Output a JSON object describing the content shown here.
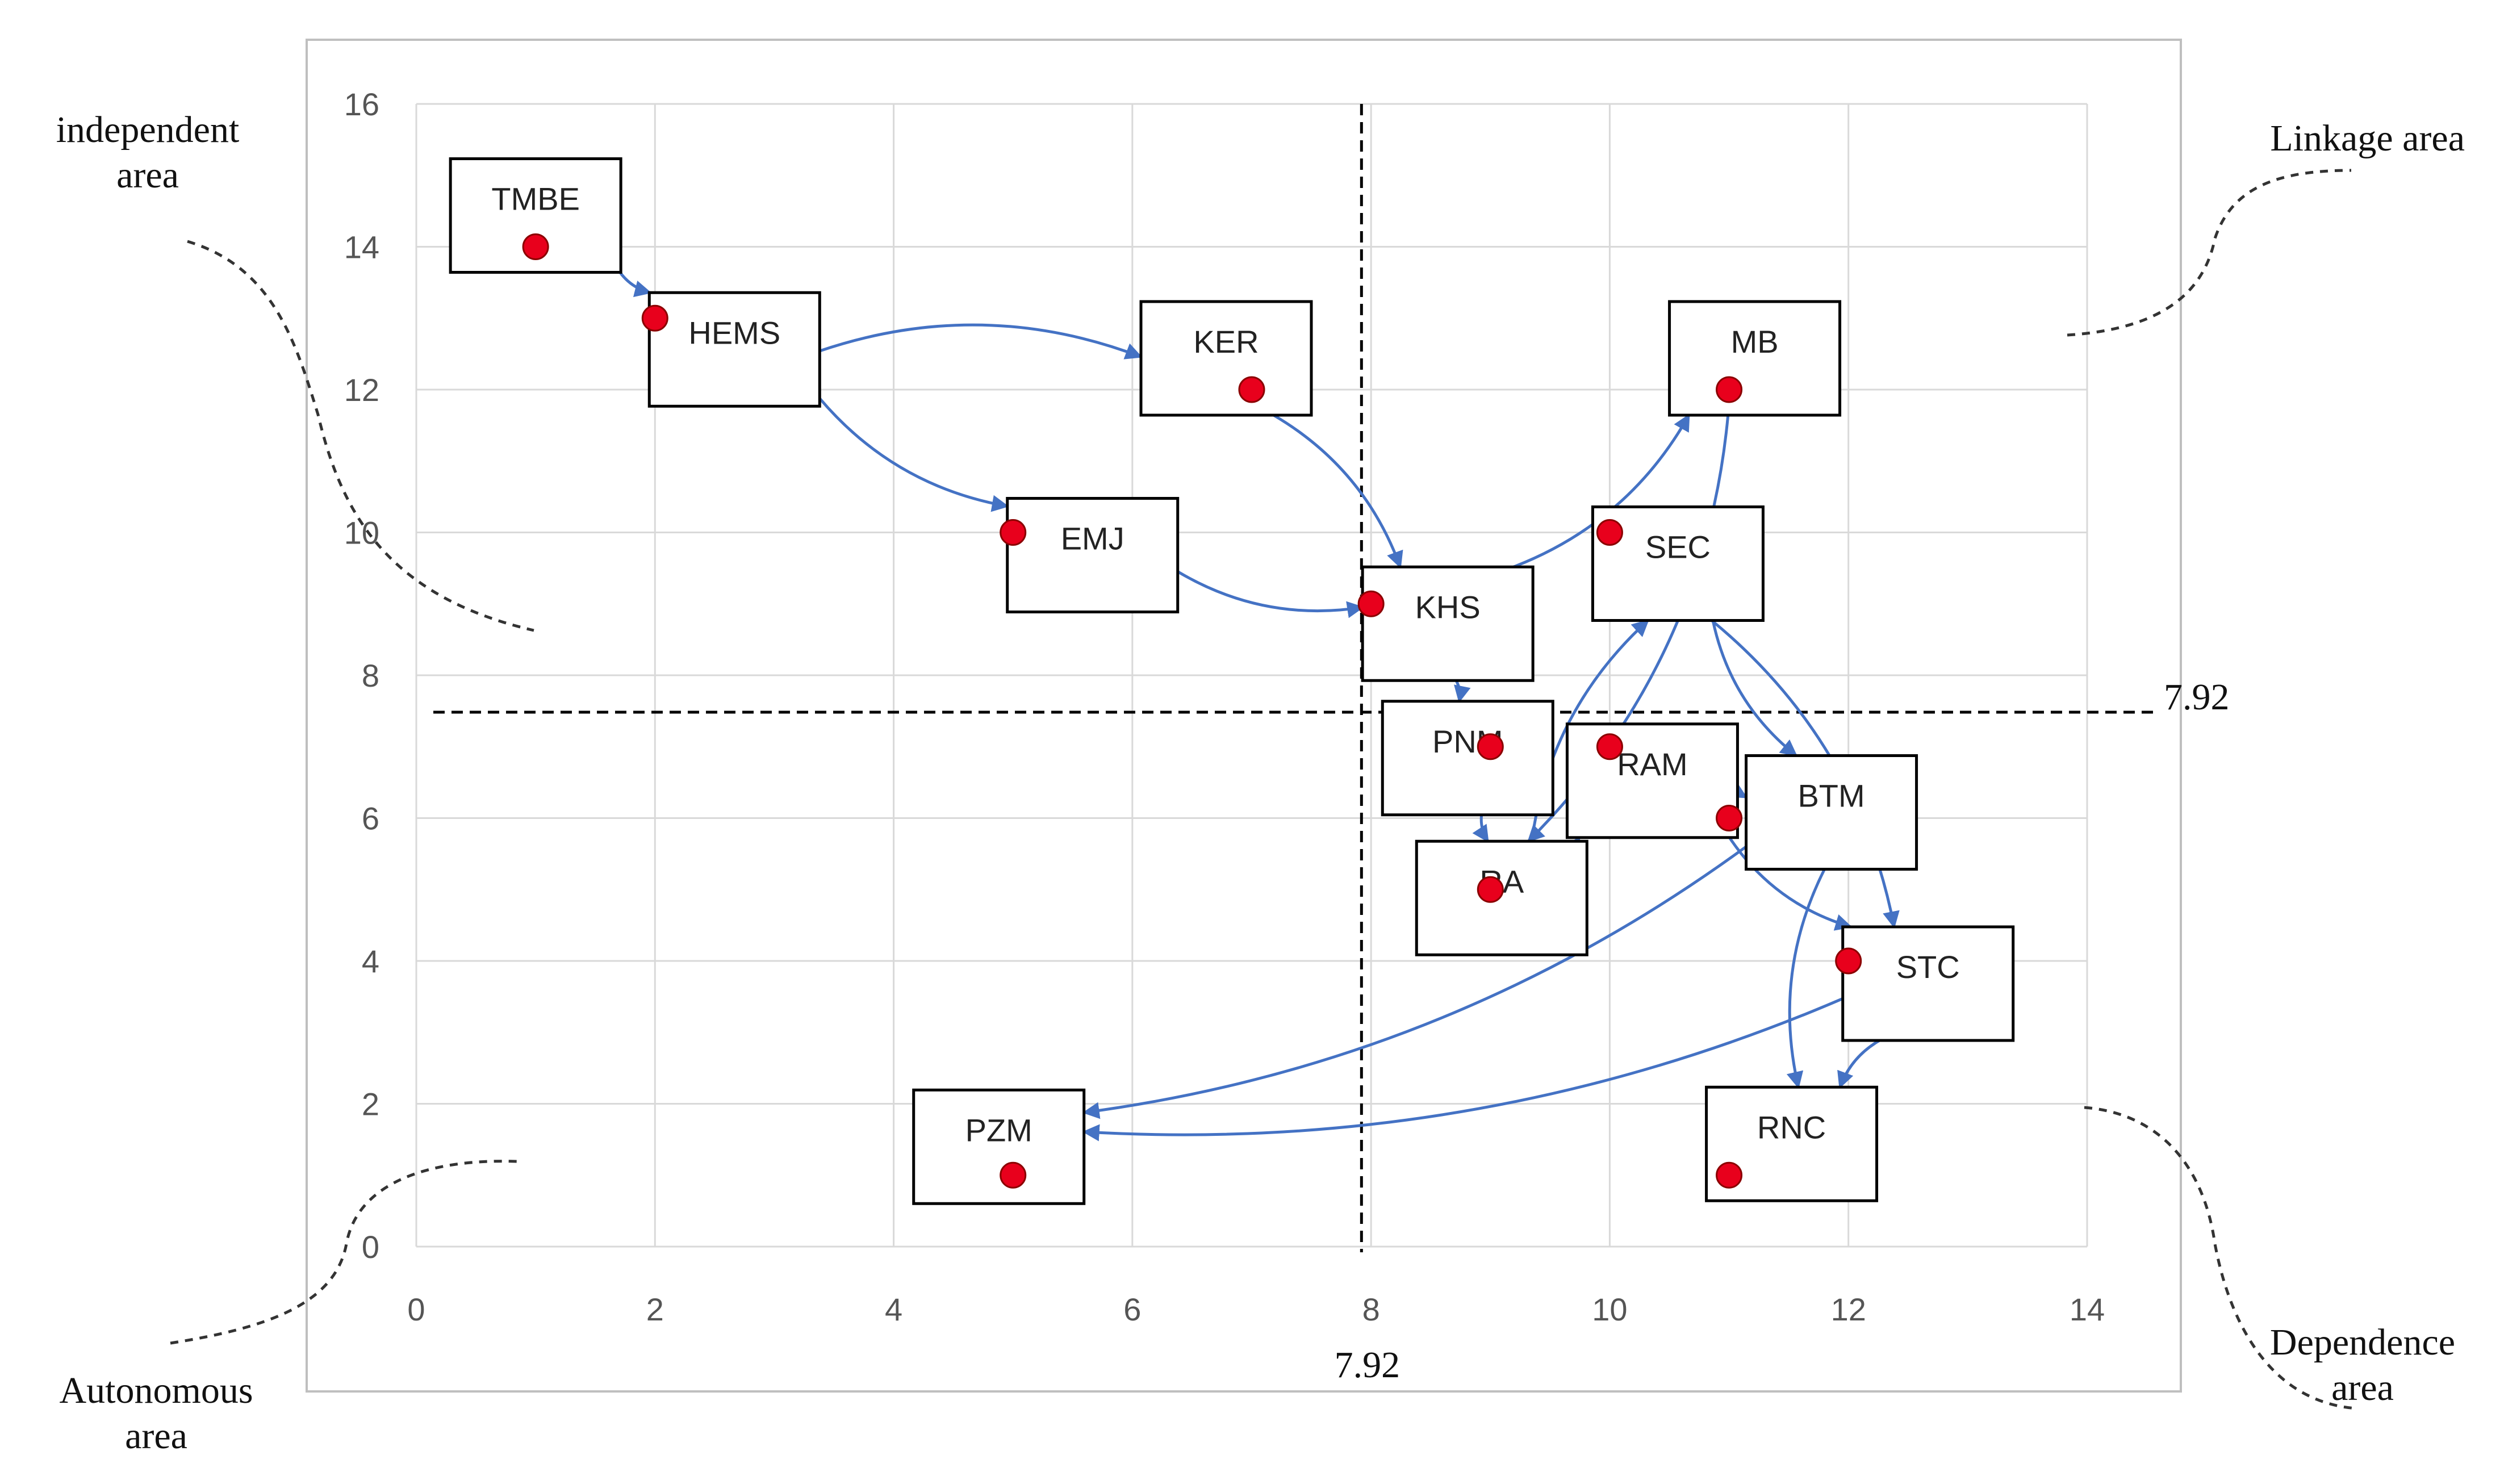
{
  "chart_data": {
    "type": "scatter",
    "title": "",
    "xlabel": "",
    "ylabel": "",
    "xlim": [
      0,
      14
    ],
    "ylim": [
      0,
      16
    ],
    "x_ticks": [
      "0",
      "2",
      "4",
      "6",
      "8",
      "10",
      "12",
      "14"
    ],
    "y_ticks": [
      "0",
      "2",
      "4",
      "6",
      "8",
      "10",
      "12",
      "14",
      "16"
    ],
    "grid": true,
    "threshold": {
      "x": 7.92,
      "y": 7.92,
      "x_label": "7.92",
      "y_label": "7.92"
    },
    "points": [
      {
        "name": "TMBE",
        "x": 1,
        "y": 14
      },
      {
        "name": "HEMS",
        "x": 2,
        "y": 13
      },
      {
        "name": "KER",
        "x": 7,
        "y": 12
      },
      {
        "name": "MB",
        "x": 11,
        "y": 12
      },
      {
        "name": "EMJ",
        "x": 5,
        "y": 10
      },
      {
        "name": "SEC",
        "x": 10,
        "y": 10
      },
      {
        "name": "KHS",
        "x": 8,
        "y": 9
      },
      {
        "name": "PNM",
        "x": 9,
        "y": 7
      },
      {
        "name": "RAM",
        "x": 10,
        "y": 7
      },
      {
        "name": "BTM",
        "x": 11,
        "y": 6
      },
      {
        "name": "RA",
        "x": 9,
        "y": 5
      },
      {
        "name": "STC",
        "x": 12,
        "y": 4
      },
      {
        "name": "PZM",
        "x": 5,
        "y": 1
      },
      {
        "name": "RNC",
        "x": 11,
        "y": 1
      }
    ],
    "links": [
      {
        "from": "TMBE",
        "to": "HEMS"
      },
      {
        "from": "HEMS",
        "to": "KER"
      },
      {
        "from": "HEMS",
        "to": "EMJ"
      },
      {
        "from": "KER",
        "to": "KHS"
      },
      {
        "from": "EMJ",
        "to": "KHS"
      },
      {
        "from": "MB",
        "to": "RA"
      },
      {
        "from": "KHS",
        "to": "MB"
      },
      {
        "from": "KHS",
        "to": "PNM"
      },
      {
        "from": "PNM",
        "to": "RA"
      },
      {
        "from": "RA",
        "to": "SEC"
      },
      {
        "from": "RA",
        "to": "RAM"
      },
      {
        "from": "SEC",
        "to": "STC"
      },
      {
        "from": "SEC",
        "to": "BTM"
      },
      {
        "from": "RAM",
        "to": "BTM"
      },
      {
        "from": "RAM",
        "to": "STC"
      },
      {
        "from": "BTM",
        "to": "PZM"
      },
      {
        "from": "BTM",
        "to": "RNC"
      },
      {
        "from": "STC",
        "to": "PZM"
      },
      {
        "from": "STC",
        "to": "RNC"
      }
    ],
    "areas": {
      "independent": [
        "independent",
        "area"
      ],
      "linkage": [
        "Linkage area"
      ],
      "autonomous": [
        "Autonomous",
        "area"
      ],
      "dependence": [
        "Dependence",
        "area"
      ]
    }
  },
  "colors": {
    "point": "#e8001c",
    "link": "#4472c4",
    "grid": "#d9d9d9",
    "frame": "#bfbfbf",
    "threshold": "#000000"
  }
}
